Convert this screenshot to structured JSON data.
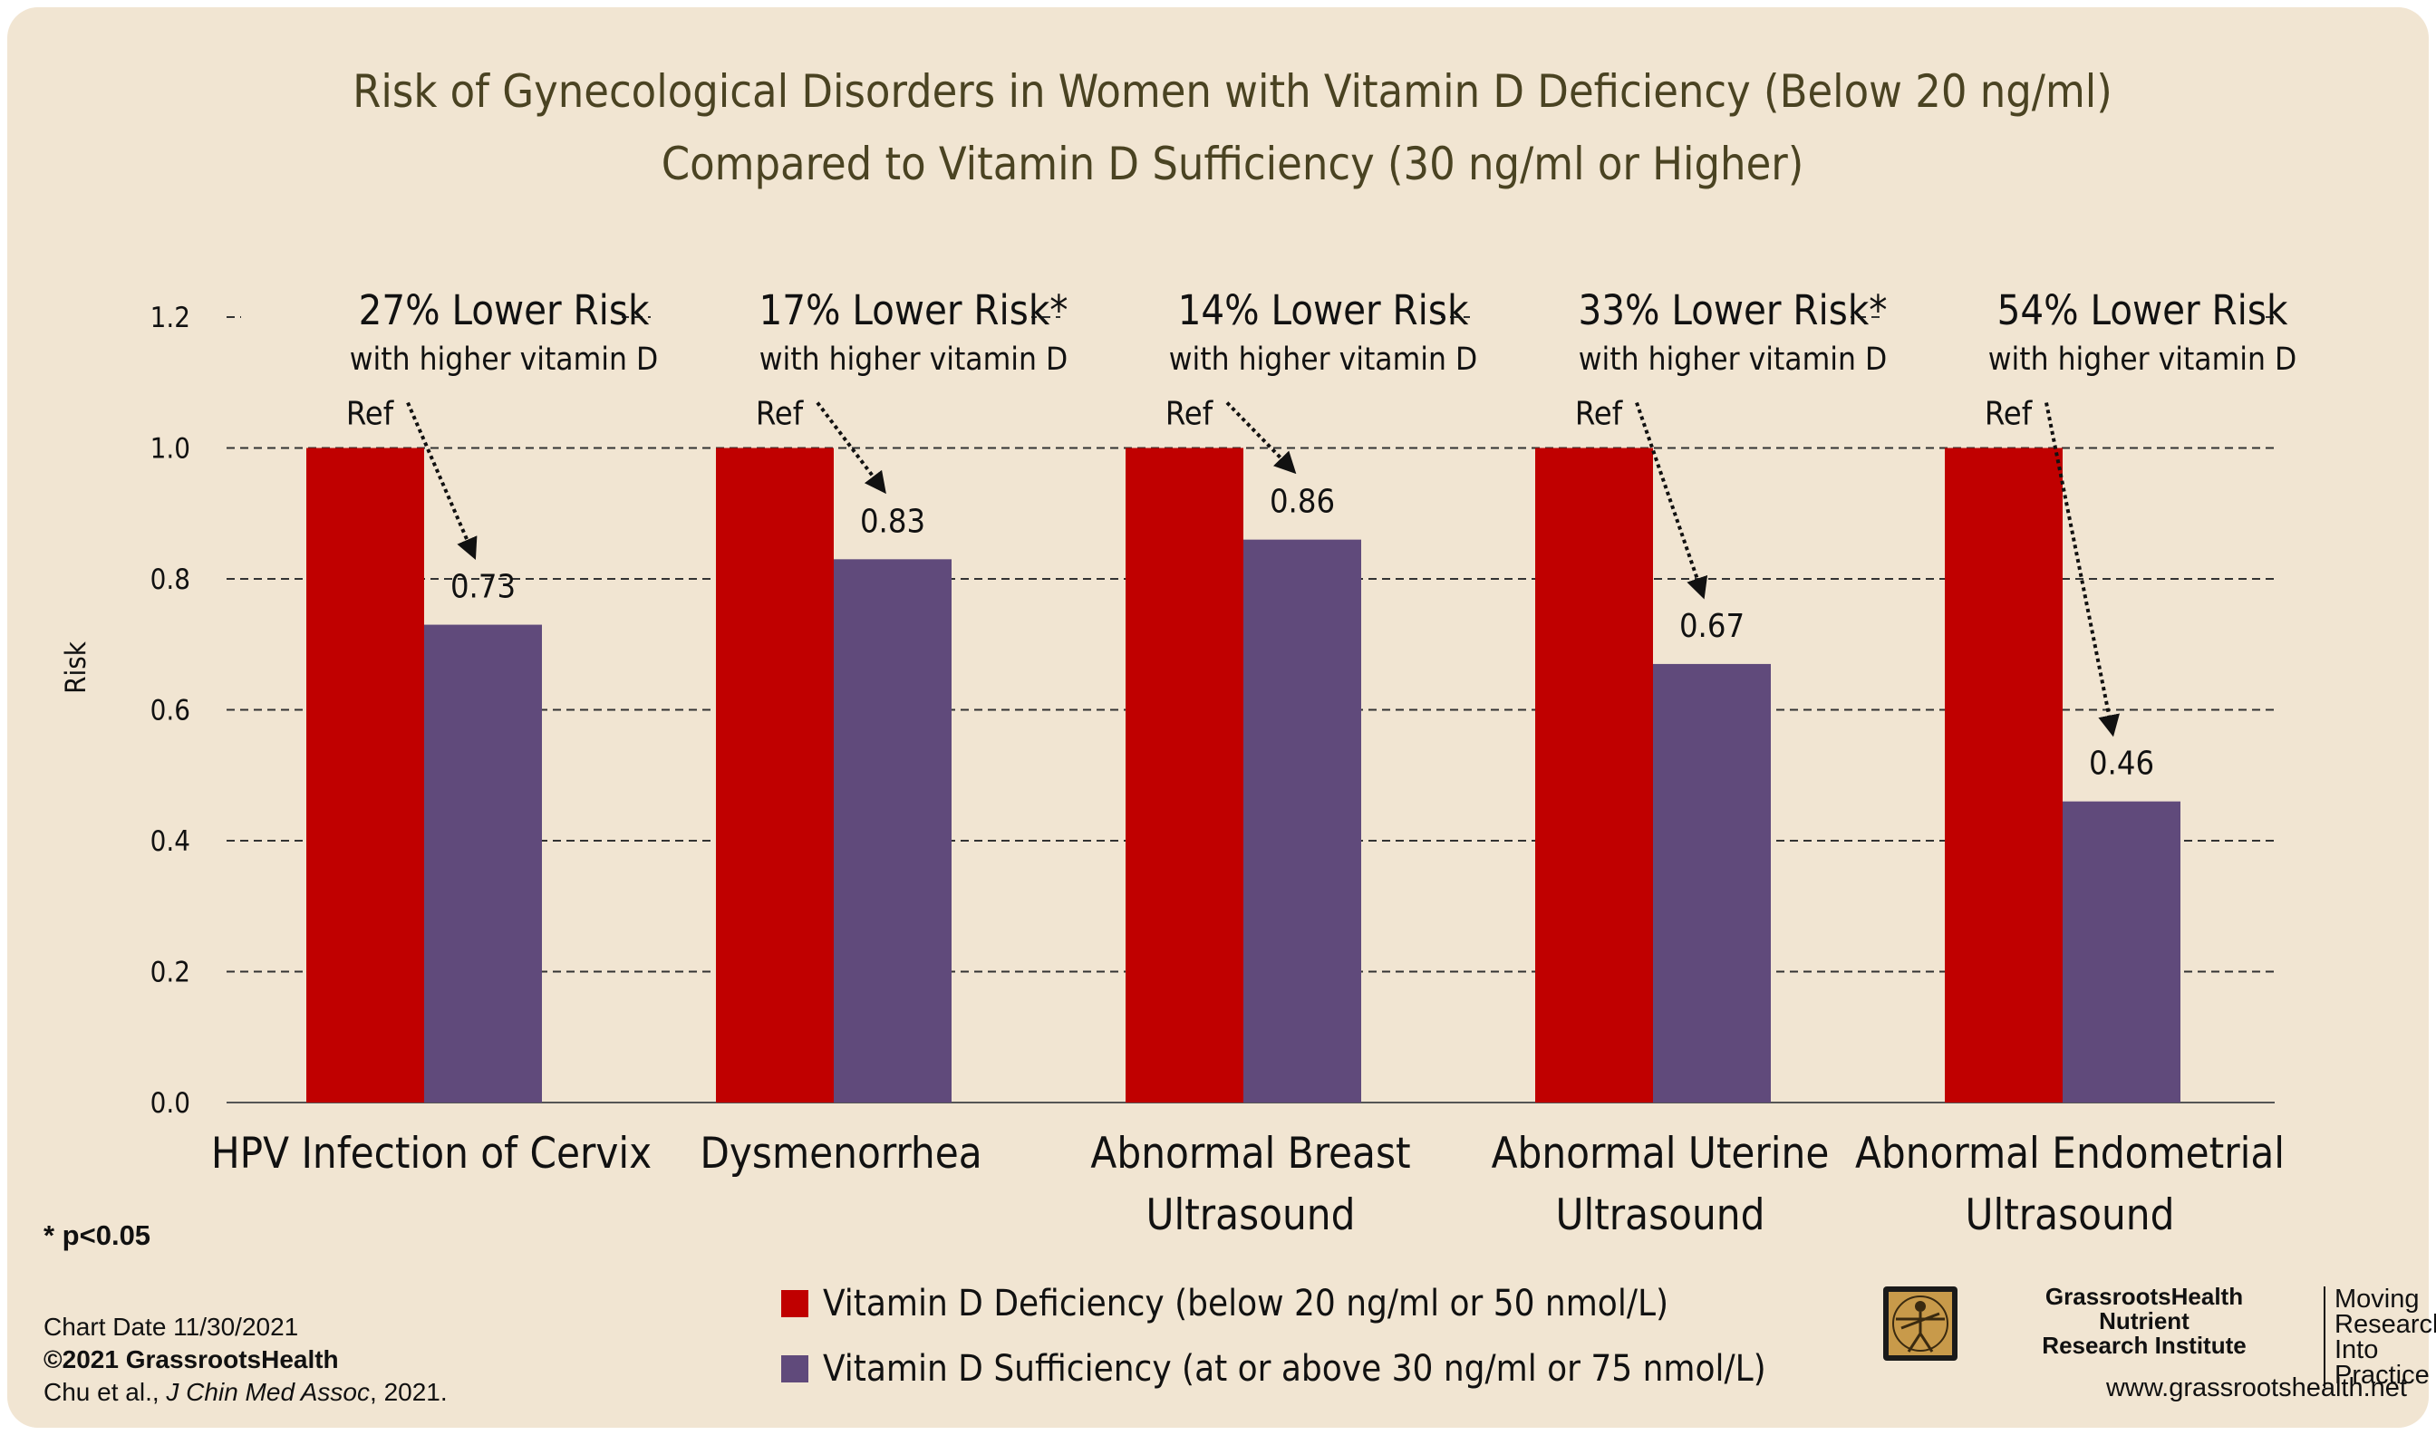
{
  "chart_data": {
    "type": "bar",
    "title": "Risk of Gynecological Disorders in Women with Vitamin D Deficiency (Below 20 ng/ml)",
    "subtitle": "Compared to Vitamin D Sufficiency (30 ng/ml or Higher)",
    "ylabel": "Risk",
    "ylim": [
      0,
      1.2
    ],
    "yticks": [
      "0.0",
      "0.2",
      "0.4",
      "0.6",
      "0.8",
      "1.0",
      "1.2"
    ],
    "grid": true,
    "categories": [
      [
        "HPV Infection of Cervix"
      ],
      [
        "Dysmenorrhea"
      ],
      [
        "Abnormal Breast",
        "Ultrasound"
      ],
      [
        "Abnormal Uterine",
        "Ultrasound"
      ],
      [
        "Abnormal Endometrial",
        "Ultrasound"
      ]
    ],
    "series": [
      {
        "name": "Vitamin D Deficiency (below 20 ng/ml or 50 nmol/L)",
        "color": "#c00000",
        "values": [
          1.0,
          1.0,
          1.0,
          1.0,
          1.0
        ]
      },
      {
        "name": "Vitamin D Sufficiency (at or above 30 ng/ml or 75 nmol/L)",
        "color": "#604a7b",
        "values": [
          0.73,
          0.83,
          0.86,
          0.67,
          0.46
        ]
      }
    ],
    "ref_labels": [
      "Ref",
      "Ref",
      "Ref",
      "Ref",
      "Ref"
    ],
    "value_labels": [
      "0.73",
      "0.83",
      "0.86",
      "0.67",
      "0.46"
    ],
    "annotations": [
      {
        "headline": "27% Lower Risk",
        "sub": "with higher vitamin D"
      },
      {
        "headline": "17% Lower Risk*",
        "sub": "with higher vitamin D"
      },
      {
        "headline": "14% Lower Risk",
        "sub": "with higher vitamin D"
      },
      {
        "headline": "33% Lower Risk*",
        "sub": "with higher vitamin D"
      },
      {
        "headline": "54% Lower Risk",
        "sub": "with higher vitamin D"
      }
    ],
    "legend_position": "bottom-center"
  },
  "footnote": "* p<0.05",
  "footer": {
    "chart_date": "Chart Date 11/30/2021",
    "copyright": "©2021 GrassrootsHealth",
    "citation_authors": "Chu et al., ",
    "citation_journal": "J Chin Med Assoc",
    "citation_year": ", 2021."
  },
  "logo": {
    "org_line1": "GrassrootsHealth",
    "org_line2": "Nutrient",
    "org_line3": "Research Institute",
    "tag_line1": "Moving",
    "tag_line2": "Research",
    "tag_line3": "Into Practice",
    "icon": "vitruvian-man-icon"
  },
  "website": "www.grassrootshealth.net",
  "colors": {
    "background": "#f1e5d2",
    "title": "#4a4322",
    "deficiency": "#c00000",
    "sufficiency": "#604a7b"
  }
}
